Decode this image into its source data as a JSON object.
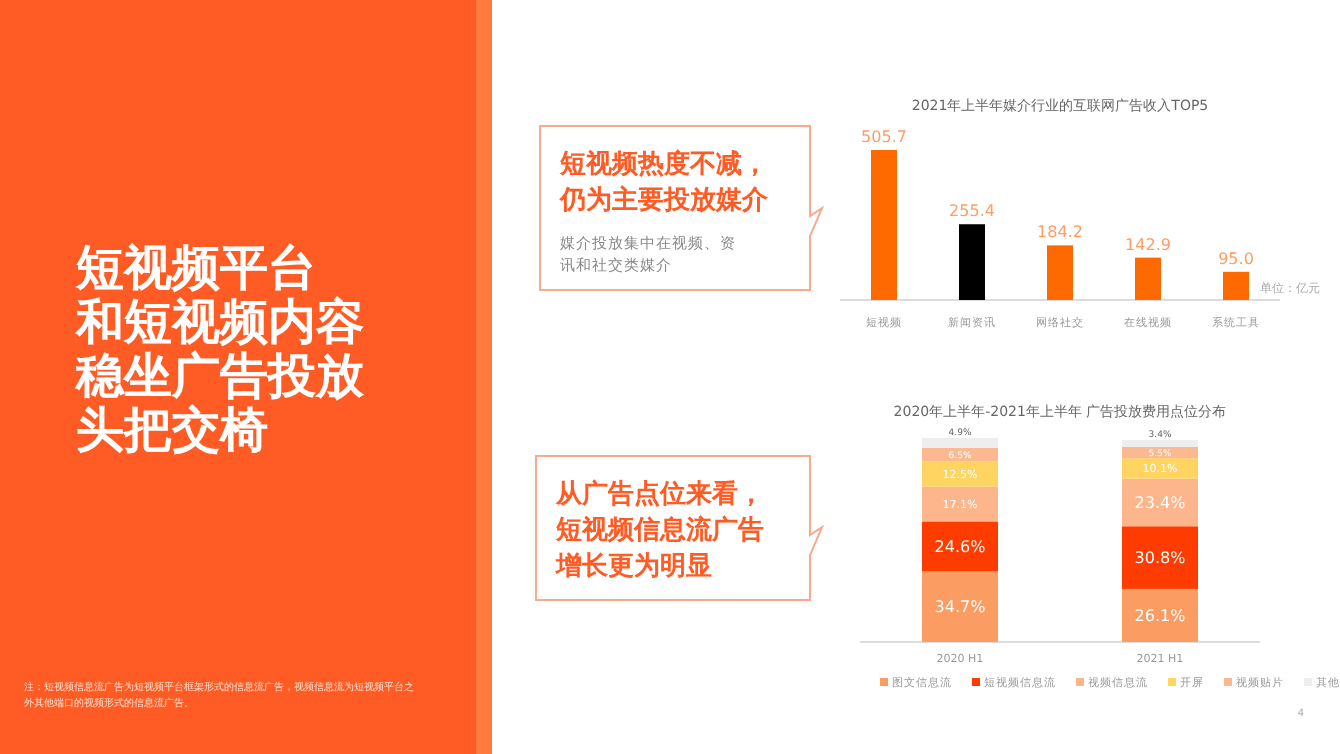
{
  "chart_data": [
    {
      "type": "other",
      "title": "短视频平台和短视频内容稳坐广告投放头把交椅",
      "annotations": [
        "注：短视频信息流广告为短视频平台框架形式的信息流广告，视频信息流为短视频平台之外其他端口的视频形式的信息流广告。"
      ]
    },
    {
      "type": "bar",
      "title": "2021年上半年媒介行业的互联网广告收入TOP5",
      "categories": [
        "短视频",
        "新闻资讯",
        "网络社交",
        "在线视频",
        "系统工具"
      ],
      "values": [
        505.7,
        255.4,
        184.2,
        142.9,
        95.0
      ],
      "value_labels": [
        "505.7",
        "255.4",
        "184.2",
        "142.9",
        "95.0"
      ],
      "colors": [
        "#ff6a00",
        "#000000",
        "#ff6a00",
        "#ff6a00",
        "#ff6a00"
      ],
      "annotations": [
        "短视频热度不减，仍为主要投放媒介",
        "媒介投放集中在视频、资讯和社交类媒介",
        "单位：亿元"
      ]
    },
    {
      "type": "bar",
      "stacked": true,
      "title": "2020年上半年-2021年上半年 广告投放费用点位分布",
      "categories": [
        "2020 H1",
        "2021 H1"
      ],
      "legend": "bottom",
      "series": [
        {
          "name": "图文信息流",
          "color": "#fb9d62",
          "values": [
            34.7,
            26.1
          ],
          "value_labels": [
            "34.7%",
            "26.1%"
          ]
        },
        {
          "name": "短视频信息流",
          "color": "#ff3c00",
          "values": [
            24.6,
            30.8
          ],
          "value_labels": [
            "24.6%",
            "30.8%"
          ]
        },
        {
          "name": "视频信息流",
          "color": "#fdb58c",
          "values": [
            17.1,
            23.4
          ],
          "value_labels": [
            "17.1%",
            "23.4%"
          ]
        },
        {
          "name": "开屏",
          "color": "#ffd460",
          "values": [
            12.5,
            10.1
          ],
          "value_labels": [
            "12.5%",
            "10.1%"
          ]
        },
        {
          "name": "视频贴片",
          "color": "#fcb991",
          "values": [
            6.5,
            5.5
          ],
          "value_labels": [
            "6.5%",
            "5.5%"
          ]
        },
        {
          "name": "其他",
          "color": "#eeeeee",
          "values": [
            4.9,
            3.4
          ],
          "value_labels": [
            "4.9%",
            "3.4%"
          ]
        }
      ],
      "annotations": [
        "从广告点位来看，短视频信息流广告增长更为明显",
        "4"
      ]
    }
  ]
}
